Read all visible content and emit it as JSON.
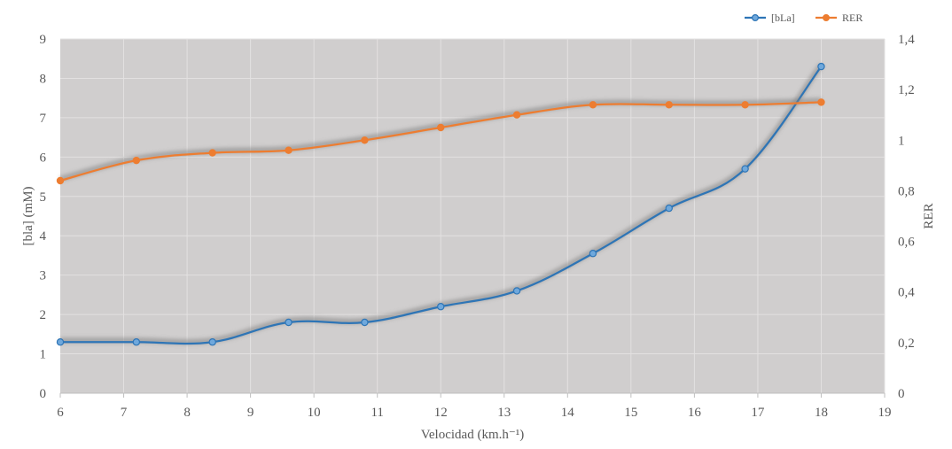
{
  "chart_data": {
    "type": "line",
    "title": "",
    "xlabel": "Velocidad (km.h⁻¹)",
    "ylabel_left": "[bla] (mM)",
    "ylabel_right": "RER",
    "xlim": [
      6,
      19
    ],
    "ylim_left": [
      0,
      9
    ],
    "ylim_right": [
      0,
      1.4
    ],
    "x_ticks": [
      "6",
      "7",
      "8",
      "9",
      "10",
      "11",
      "12",
      "13",
      "14",
      "15",
      "16",
      "17",
      "18",
      "19"
    ],
    "y_left_ticks": [
      "0",
      "1",
      "2",
      "3",
      "4",
      "5",
      "6",
      "7",
      "8",
      "9"
    ],
    "y_right_ticks": [
      "0",
      "0,2",
      "0,4",
      "0,6",
      "0,8",
      "1",
      "1,2",
      "1,4"
    ],
    "legend_position": "top-right",
    "grid": true,
    "plot_background": "#d0cece",
    "series": [
      {
        "name": "[bLa]",
        "axis": "left",
        "color": "#2e75b6",
        "x": [
          6,
          7.2,
          8.4,
          9.6,
          10.8,
          12,
          13.2,
          14.4,
          15.6,
          16.8,
          18
        ],
        "values": [
          1.3,
          1.3,
          1.3,
          1.8,
          1.8,
          2.2,
          2.6,
          3.55,
          4.7,
          5.7,
          8.3
        ]
      },
      {
        "name": "RER",
        "axis": "right",
        "color": "#ed7d31",
        "x": [
          6,
          7.2,
          8.4,
          9.6,
          10.8,
          12,
          13.2,
          14.4,
          15.6,
          16.8,
          18
        ],
        "values": [
          0.84,
          0.92,
          0.95,
          0.96,
          1.0,
          1.05,
          1.1,
          1.14,
          1.14,
          1.14,
          1.15
        ]
      }
    ]
  }
}
